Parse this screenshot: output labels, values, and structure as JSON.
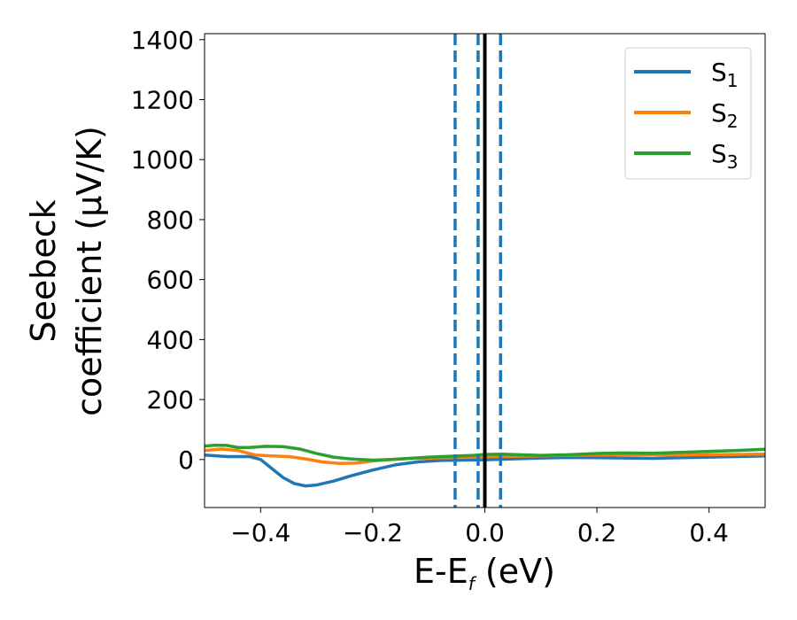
{
  "chart_data": {
    "type": "line",
    "xlabel": {
      "main": "E-E",
      "sub": "f",
      "tail": " (eV)"
    },
    "ylabel": {
      "line1": "Seebeck",
      "line2": "coefficient  (μV/K)"
    },
    "xlim": [
      -0.5,
      0.5
    ],
    "ylim": [
      -160,
      1420
    ],
    "xticks": [
      -0.4,
      -0.2,
      0.0,
      0.2,
      0.4
    ],
    "xtick_labels": [
      "−0.4",
      "−0.2",
      "0.0",
      "0.2",
      "0.4"
    ],
    "yticks": [
      0,
      200,
      400,
      600,
      800,
      1000,
      1200,
      1400
    ],
    "ytick_labels": [
      "0",
      "200",
      "400",
      "600",
      "800",
      "1000",
      "1200",
      "1400"
    ],
    "legend_position": "top-right",
    "series": [
      {
        "name": "S",
        "sub": "1",
        "color": "#1f77b4",
        "points": [
          [
            -0.5,
            15
          ],
          [
            -0.46,
            10
          ],
          [
            -0.42,
            10
          ],
          [
            -0.4,
            0
          ],
          [
            -0.38,
            -30
          ],
          [
            -0.36,
            -60
          ],
          [
            -0.34,
            -80
          ],
          [
            -0.32,
            -88
          ],
          [
            -0.3,
            -85
          ],
          [
            -0.27,
            -72
          ],
          [
            -0.24,
            -55
          ],
          [
            -0.2,
            -35
          ],
          [
            -0.16,
            -18
          ],
          [
            -0.12,
            -8
          ],
          [
            -0.08,
            -3
          ],
          [
            -0.04,
            -2
          ],
          [
            0.0,
            -1
          ],
          [
            0.05,
            2
          ],
          [
            0.1,
            5
          ],
          [
            0.15,
            7
          ],
          [
            0.2,
            6
          ],
          [
            0.25,
            5
          ],
          [
            0.3,
            4
          ],
          [
            0.35,
            6
          ],
          [
            0.4,
            8
          ],
          [
            0.45,
            10
          ],
          [
            0.5,
            12
          ]
        ]
      },
      {
        "name": "S",
        "sub": "2",
        "color": "#ff7f0e",
        "points": [
          [
            -0.5,
            30
          ],
          [
            -0.47,
            35
          ],
          [
            -0.44,
            30
          ],
          [
            -0.41,
            15
          ],
          [
            -0.38,
            12
          ],
          [
            -0.35,
            10
          ],
          [
            -0.32,
            2
          ],
          [
            -0.29,
            -8
          ],
          [
            -0.26,
            -13
          ],
          [
            -0.23,
            -12
          ],
          [
            -0.2,
            -5
          ],
          [
            -0.17,
            0
          ],
          [
            -0.14,
            3
          ],
          [
            -0.1,
            5
          ],
          [
            -0.06,
            6
          ],
          [
            -0.02,
            8
          ],
          [
            0.02,
            10
          ],
          [
            0.06,
            11
          ],
          [
            0.1,
            12
          ],
          [
            0.15,
            14
          ],
          [
            0.2,
            15
          ],
          [
            0.25,
            16
          ],
          [
            0.3,
            16
          ],
          [
            0.35,
            15
          ],
          [
            0.4,
            16
          ],
          [
            0.45,
            17
          ],
          [
            0.5,
            18
          ]
        ]
      },
      {
        "name": "S",
        "sub": "3",
        "color": "#2ca02c",
        "points": [
          [
            -0.5,
            45
          ],
          [
            -0.48,
            48
          ],
          [
            -0.46,
            47
          ],
          [
            -0.44,
            40
          ],
          [
            -0.42,
            40
          ],
          [
            -0.39,
            44
          ],
          [
            -0.36,
            43
          ],
          [
            -0.33,
            35
          ],
          [
            -0.3,
            20
          ],
          [
            -0.27,
            8
          ],
          [
            -0.24,
            2
          ],
          [
            -0.2,
            -2
          ],
          [
            -0.17,
            0
          ],
          [
            -0.14,
            3
          ],
          [
            -0.1,
            8
          ],
          [
            -0.06,
            11
          ],
          [
            -0.02,
            14
          ],
          [
            0.0,
            17
          ],
          [
            0.03,
            18
          ],
          [
            0.06,
            16
          ],
          [
            0.1,
            14
          ],
          [
            0.15,
            16
          ],
          [
            0.2,
            20
          ],
          [
            0.25,
            22
          ],
          [
            0.3,
            21
          ],
          [
            0.35,
            24
          ],
          [
            0.4,
            27
          ],
          [
            0.45,
            30
          ],
          [
            0.5,
            34
          ]
        ]
      }
    ],
    "vlines": [
      {
        "x": -0.053,
        "style": "dashed",
        "color": "#1f77b4"
      },
      {
        "x": -0.012,
        "style": "dashed",
        "color": "#1f77b4"
      },
      {
        "x": 0.028,
        "style": "dashed",
        "color": "#1f77b4"
      },
      {
        "x": 0.0,
        "style": "solid",
        "color": "#000000"
      }
    ]
  }
}
